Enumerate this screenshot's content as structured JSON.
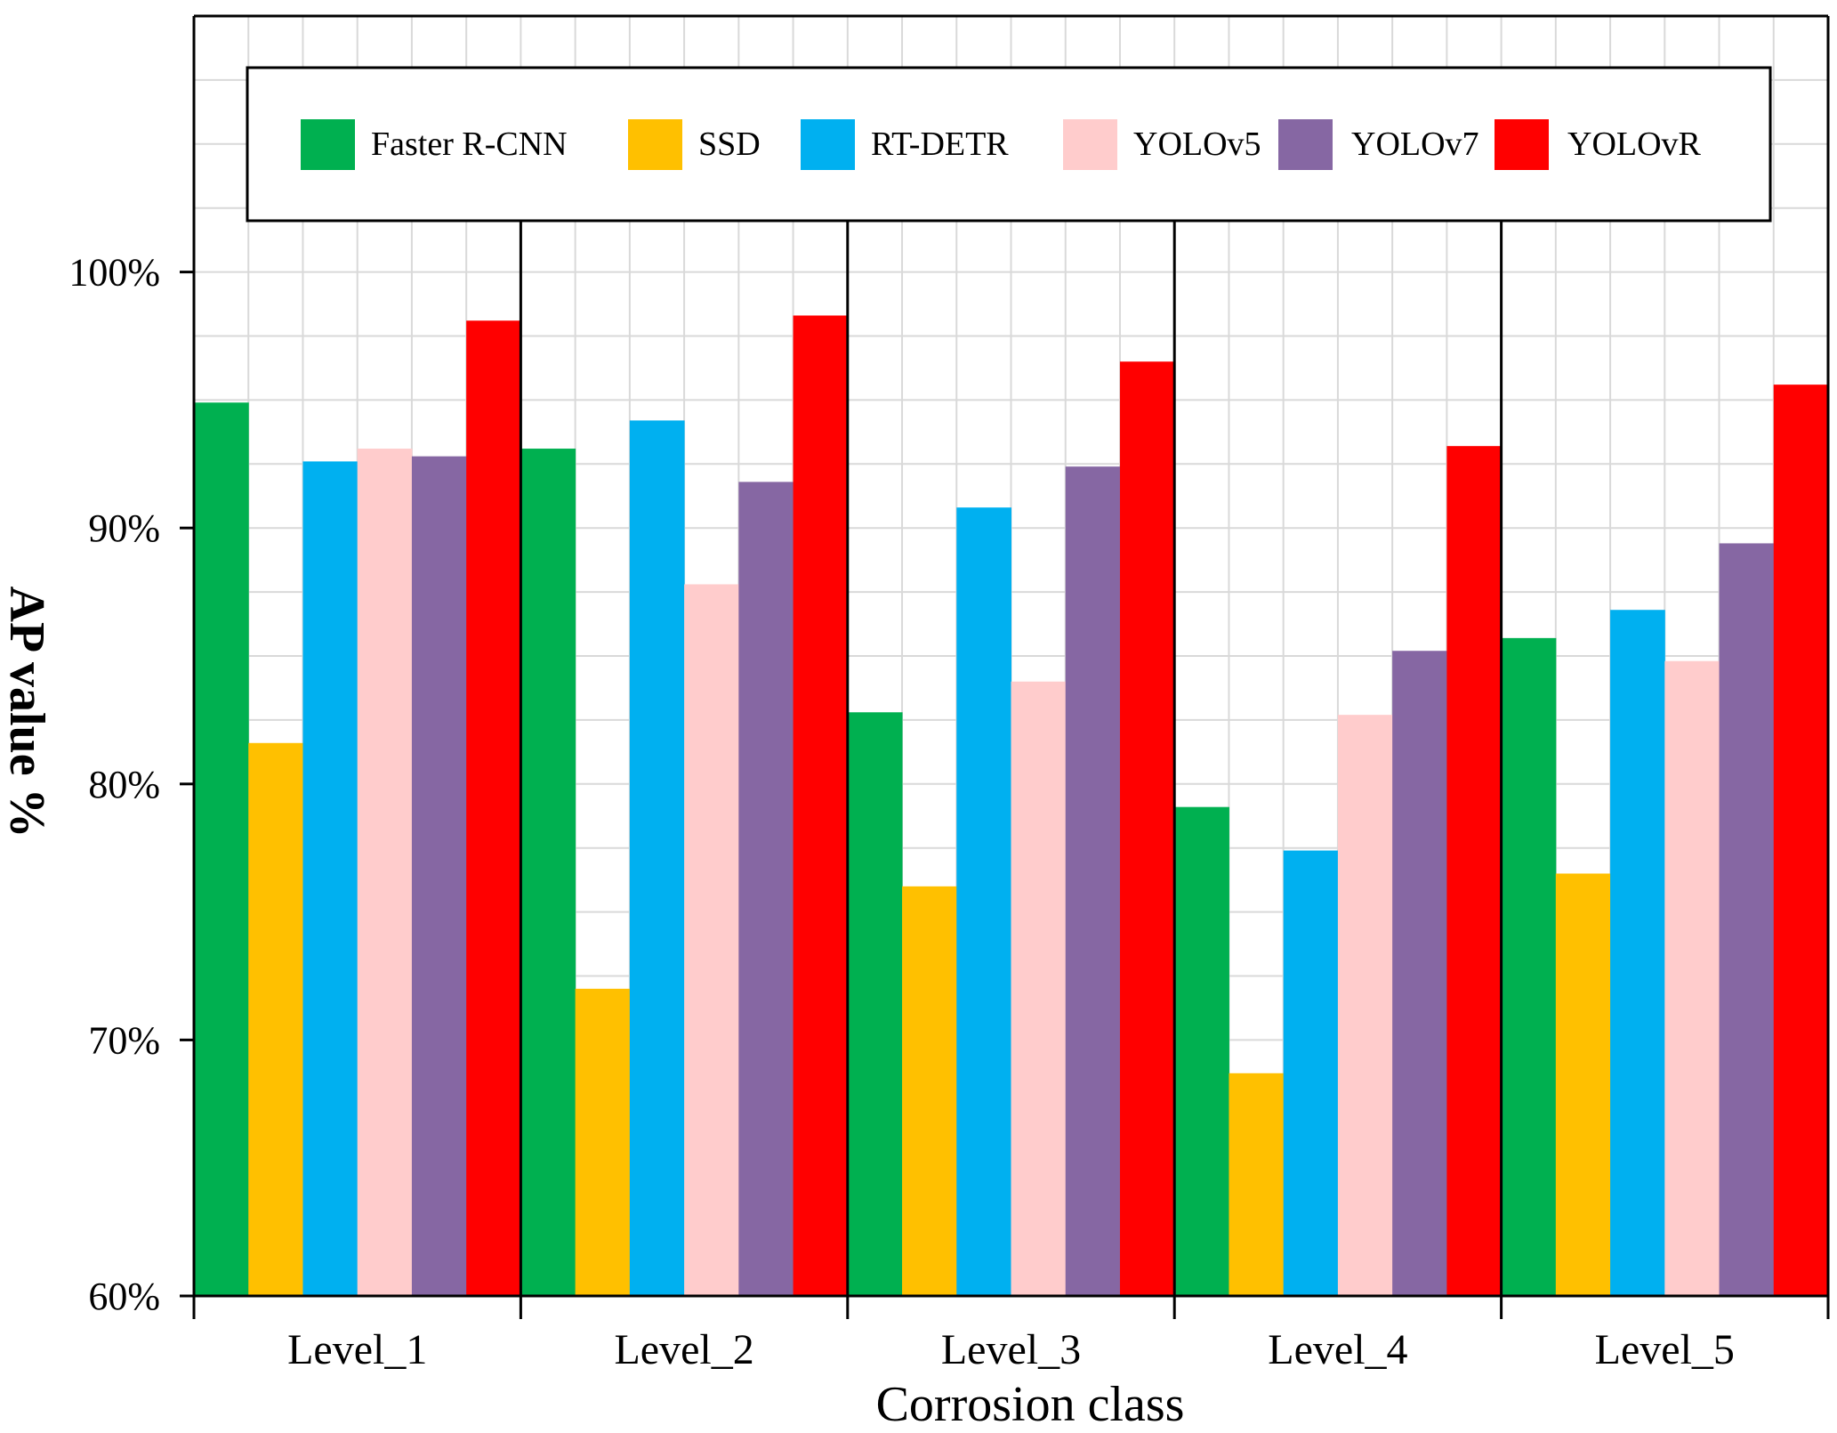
{
  "chart_data": {
    "type": "bar",
    "title": "",
    "xlabel": "Corrosion class",
    "ylabel": "AP value %",
    "ylim": [
      60,
      110
    ],
    "y_ticks": [
      60,
      70,
      80,
      90,
      100
    ],
    "y_tick_labels": [
      "60%",
      "70%",
      "80%",
      "90%",
      "100%"
    ],
    "grid": true,
    "legend_position": "top",
    "categories": [
      "Level_1",
      "Level_2",
      "Level_3",
      "Level_4",
      "Level_5"
    ],
    "series": [
      {
        "name": "Faster R-CNN",
        "color": "#00b050",
        "values": [
          94.9,
          93.1,
          82.8,
          79.1,
          85.7
        ]
      },
      {
        "name": "SSD",
        "color": "#ffc000",
        "values": [
          81.6,
          72.0,
          76.0,
          68.7,
          76.5
        ]
      },
      {
        "name": "RT-DETR",
        "color": "#00b0f0",
        "values": [
          92.6,
          94.2,
          90.8,
          77.4,
          86.8
        ]
      },
      {
        "name": "YOLOv5",
        "color": "#ffcccc",
        "values": [
          93.1,
          87.8,
          84.0,
          82.7,
          84.8
        ]
      },
      {
        "name": "YOLOv7",
        "color": "#8667a3",
        "values": [
          92.8,
          91.8,
          92.4,
          85.2,
          89.4
        ]
      },
      {
        "name": "YOLOvR",
        "color": "#ff0000",
        "values": [
          98.1,
          98.3,
          96.5,
          93.2,
          95.6
        ]
      }
    ]
  }
}
